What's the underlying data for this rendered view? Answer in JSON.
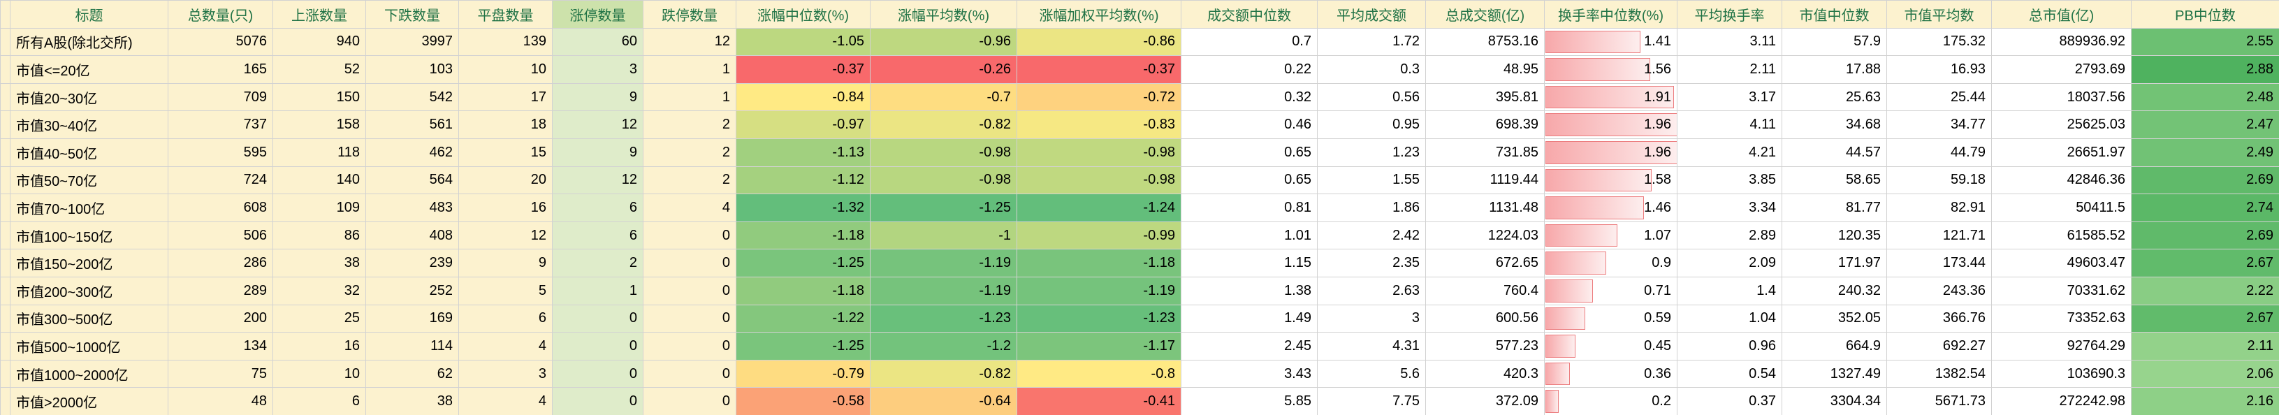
{
  "table": {
    "columns": [
      "标题",
      "总数量(只)",
      "上涨数量",
      "下跌数量",
      "平盘数量",
      "涨停数量",
      "跌停数量",
      "涨幅中位数(%)",
      "涨幅平均数(%)",
      "涨幅加权平均数(%)",
      "成交额中位数",
      "平均成交额",
      "总成交额(亿)",
      "换手率中位数(%)",
      "平均换手率",
      "市值中位数",
      "市值平均数",
      "总市值(亿)",
      "PB中位数"
    ],
    "rows": [
      [
        "所有A股(除北交所)",
        "5076",
        "940",
        "3997",
        "139",
        "60",
        "12",
        "-1.05",
        "-0.96",
        "-0.86",
        "0.7",
        "1.72",
        "8753.16",
        "1.41",
        "3.11",
        "57.9",
        "175.32",
        "889936.92",
        "2.55"
      ],
      [
        "市值<=20亿",
        "165",
        "52",
        "103",
        "10",
        "3",
        "1",
        "-0.37",
        "-0.26",
        "-0.37",
        "0.22",
        "0.3",
        "48.95",
        "1.56",
        "2.11",
        "17.88",
        "16.93",
        "2793.69",
        "2.88"
      ],
      [
        "市值20~30亿",
        "709",
        "150",
        "542",
        "17",
        "9",
        "1",
        "-0.84",
        "-0.7",
        "-0.72",
        "0.32",
        "0.56",
        "395.81",
        "1.91",
        "3.17",
        "25.63",
        "25.44",
        "18037.56",
        "2.48"
      ],
      [
        "市值30~40亿",
        "737",
        "158",
        "561",
        "18",
        "12",
        "2",
        "-0.97",
        "-0.82",
        "-0.83",
        "0.46",
        "0.95",
        "698.39",
        "1.96",
        "4.11",
        "34.68",
        "34.77",
        "25625.03",
        "2.47"
      ],
      [
        "市值40~50亿",
        "595",
        "118",
        "462",
        "15",
        "9",
        "2",
        "-1.13",
        "-0.98",
        "-0.98",
        "0.65",
        "1.23",
        "731.85",
        "1.96",
        "4.21",
        "44.57",
        "44.79",
        "26651.97",
        "2.49"
      ],
      [
        "市值50~70亿",
        "724",
        "140",
        "564",
        "20",
        "12",
        "2",
        "-1.12",
        "-0.98",
        "-0.98",
        "0.65",
        "1.55",
        "1119.44",
        "1.58",
        "3.85",
        "58.65",
        "59.18",
        "42846.36",
        "2.69"
      ],
      [
        "市值70~100亿",
        "608",
        "109",
        "483",
        "16",
        "6",
        "4",
        "-1.32",
        "-1.25",
        "-1.24",
        "0.81",
        "1.86",
        "1131.48",
        "1.46",
        "3.34",
        "81.77",
        "82.91",
        "50411.5",
        "2.74"
      ],
      [
        "市值100~150亿",
        "506",
        "86",
        "408",
        "12",
        "6",
        "0",
        "-1.18",
        "-1",
        "-0.99",
        "1.01",
        "2.42",
        "1224.03",
        "1.07",
        "2.89",
        "120.35",
        "121.71",
        "61585.52",
        "2.69"
      ],
      [
        "市值150~200亿",
        "286",
        "38",
        "239",
        "9",
        "2",
        "0",
        "-1.25",
        "-1.19",
        "-1.18",
        "1.15",
        "2.35",
        "672.65",
        "0.9",
        "2.09",
        "171.97",
        "173.44",
        "49603.47",
        "2.67"
      ],
      [
        "市值200~300亿",
        "289",
        "32",
        "252",
        "5",
        "1",
        "0",
        "-1.18",
        "-1.19",
        "-1.19",
        "1.38",
        "2.63",
        "760.4",
        "0.71",
        "1.4",
        "240.32",
        "243.36",
        "70331.62",
        "2.22"
      ],
      [
        "市值300~500亿",
        "200",
        "25",
        "169",
        "6",
        "0",
        "0",
        "-1.22",
        "-1.23",
        "-1.23",
        "1.49",
        "3",
        "600.56",
        "0.59",
        "1.04",
        "352.05",
        "366.76",
        "73352.63",
        "2.67"
      ],
      [
        "市值500~1000亿",
        "134",
        "16",
        "114",
        "4",
        "0",
        "0",
        "-1.25",
        "-1.2",
        "-1.17",
        "2.45",
        "4.31",
        "577.23",
        "0.45",
        "0.96",
        "664.9",
        "692.27",
        "92764.29",
        "2.11"
      ],
      [
        "市值1000~2000亿",
        "75",
        "10",
        "62",
        "3",
        "0",
        "0",
        "-0.79",
        "-0.82",
        "-0.8",
        "3.43",
        "5.6",
        "420.3",
        "0.36",
        "0.54",
        "1327.49",
        "1382.54",
        "103690.3",
        "2.06"
      ],
      [
        "市值>2000亿",
        "48",
        "6",
        "38",
        "4",
        "0",
        "0",
        "-0.58",
        "-0.64",
        "-0.41",
        "5.85",
        "7.75",
        "372.09",
        "0.2",
        "0.37",
        "3304.34",
        "5671.73",
        "272242.98",
        "2.16"
      ]
    ]
  },
  "colors": {
    "header_text": "#217346",
    "cream_bg": "#fcf2cf",
    "limit_up_header_bg": "#cde2ab",
    "limit_up_cell_bg": "#dfecca",
    "scale_red": "#f8696b",
    "scale_yellow": "#ffeb84",
    "scale_green": "#63be7b",
    "pb_green_low": "#97d48d",
    "pb_green_high": "#4fb25f",
    "bar_fill_start": "#f7a8aa",
    "bar_fill_end": "#fdeeee",
    "bar_border": "#ec7c7e",
    "grid": "#d2d2d2"
  }
}
